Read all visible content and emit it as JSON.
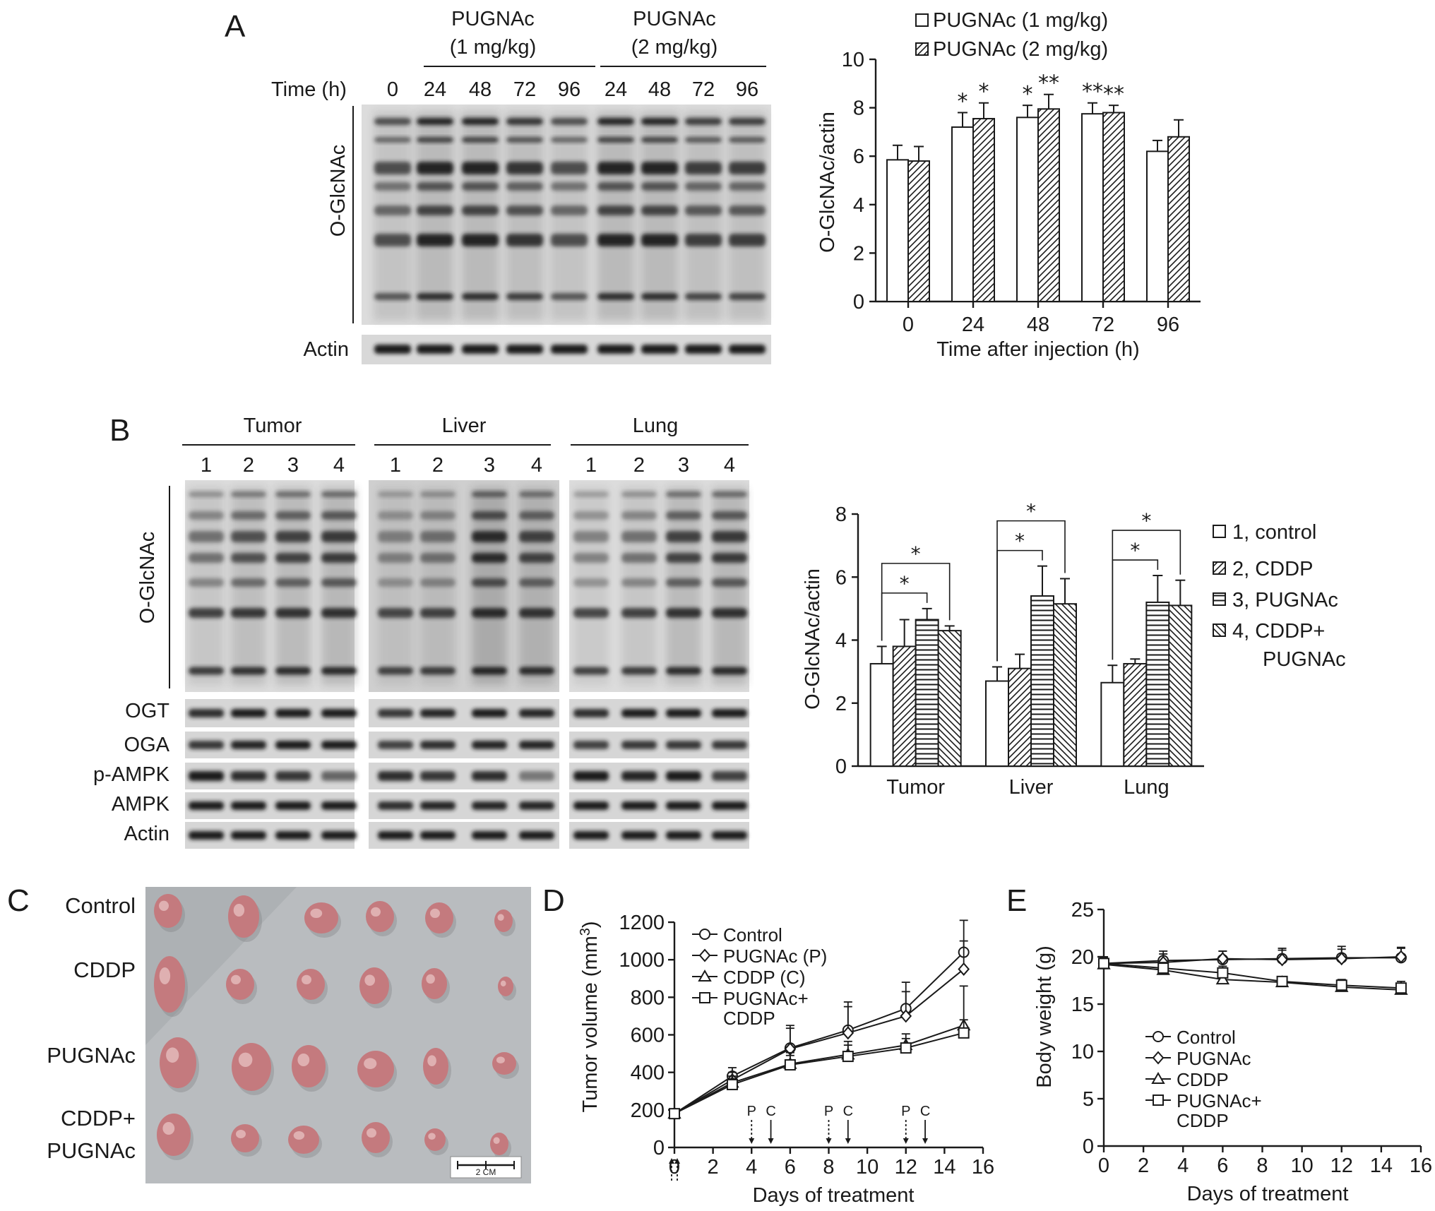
{
  "panel_letters": [
    "A",
    "B",
    "C",
    "D",
    "E"
  ],
  "panel_a": {
    "blot": {
      "group_1mg": [
        "PUGNAc",
        "(1 mg/kg)"
      ],
      "group_2mg": [
        "PUGNAc",
        "(2 mg/kg)"
      ],
      "time_label": "Time (h)",
      "lane_times": [
        "0",
        "24",
        "48",
        "72",
        "96",
        "24",
        "48",
        "72",
        "96"
      ],
      "row_labels": [
        "O-GlcNAc",
        "Actin"
      ]
    }
  },
  "panel_b": {
    "blot": {
      "tissues": [
        "Tumor",
        "Liver",
        "Lung"
      ],
      "lane_numbers": [
        "1",
        "2",
        "3",
        "4"
      ],
      "row_labels": [
        "O-GlcNAc",
        "OGT",
        "OGA",
        "p-AMPK",
        "AMPK",
        "Actin"
      ]
    }
  },
  "panel_c": {
    "row_labels": [
      "Control",
      "CDDP",
      "PUGNAc",
      "CDDP+",
      "PUGNAc"
    ],
    "scale_bar": "2 CM",
    "tumor_color": "#c47a7e",
    "background_color": "#b9bcbf"
  },
  "colors": {
    "ink": "#1a1a1a",
    "band": "#1e1e1e",
    "membrane": "#dcdcdc"
  },
  "chart_data": [
    {
      "id": "A-bar",
      "type": "bar",
      "categories": [
        "0",
        "24",
        "48",
        "72",
        "96"
      ],
      "series": [
        {
          "name": "PUGNAc (1 mg/kg)",
          "pattern": "open",
          "values": [
            5.85,
            7.2,
            7.6,
            7.75,
            6.2
          ],
          "errors": [
            0.6,
            0.6,
            0.5,
            0.45,
            0.45
          ],
          "stars": [
            "",
            "*",
            "*",
            "**",
            ""
          ]
        },
        {
          "name": "PUGNAc (2 mg/kg)",
          "pattern": "diagonal",
          "values": [
            5.8,
            7.55,
            7.95,
            7.8,
            6.8
          ],
          "errors": [
            0.6,
            0.65,
            0.6,
            0.3,
            0.7
          ],
          "stars": [
            "",
            "*",
            "**",
            "**",
            ""
          ]
        }
      ],
      "xlabel": "Time after injection (h)",
      "ylabel": "O-GlcNAc/actin",
      "ylim": [
        0,
        10
      ],
      "yticks": [
        "0",
        "2",
        "4",
        "6",
        "8",
        "10"
      ],
      "legend": "top"
    },
    {
      "id": "B-bar",
      "type": "bar",
      "categories": [
        "Tumor",
        "Liver",
        "Lung"
      ],
      "series": [
        {
          "name": "1, control",
          "pattern": "open",
          "values": [
            3.25,
            2.7,
            2.65
          ],
          "errors": [
            0.55,
            0.45,
            0.55
          ]
        },
        {
          "name": "2, CDDP",
          "pattern": "diagonal",
          "values": [
            3.8,
            3.1,
            3.25
          ],
          "errors": [
            0.85,
            0.45,
            0.15
          ]
        },
        {
          "name": "3, PUGNAc",
          "pattern": "horizontal",
          "values": [
            4.65,
            5.4,
            5.2
          ],
          "errors": [
            0.35,
            0.95,
            0.85
          ]
        },
        {
          "name": "4, CDDP+ PUGNAc",
          "legend_lines": [
            "4, CDDP+",
            "PUGNAc"
          ],
          "pattern": "antidiagonal",
          "values": [
            4.3,
            5.15,
            5.1
          ],
          "errors": [
            0.15,
            0.8,
            0.8
          ]
        }
      ],
      "significance": [
        {
          "category": 0,
          "from": 0,
          "to": 2,
          "label": "*"
        },
        {
          "category": 0,
          "from": 0,
          "to": 3,
          "label": "*"
        },
        {
          "category": 1,
          "from": 0,
          "to": 2,
          "label": "*"
        },
        {
          "category": 1,
          "from": 0,
          "to": 3,
          "label": "*"
        },
        {
          "category": 2,
          "from": 0,
          "to": 2,
          "label": "*"
        },
        {
          "category": 2,
          "from": 0,
          "to": 3,
          "label": "*"
        }
      ],
      "ylabel": "O-GlcNAc/actin",
      "ylim": [
        0,
        8
      ],
      "yticks": [
        "0",
        "2",
        "4",
        "6",
        "8"
      ],
      "legend": "right"
    },
    {
      "id": "D-line",
      "type": "line",
      "x": [
        0,
        3,
        6,
        9,
        12,
        15
      ],
      "series": [
        {
          "name": "Control",
          "marker": "circle",
          "values": [
            180,
            380,
            530,
            625,
            740,
            1040
          ],
          "errors": [
            20,
            45,
            120,
            150,
            140,
            170
          ]
        },
        {
          "name": "PUGNAc (P)",
          "marker": "diamond",
          "values": [
            180,
            360,
            525,
            610,
            700,
            950
          ],
          "errors": [
            20,
            40,
            110,
            140,
            130,
            150
          ]
        },
        {
          "name": "CDDP (C)",
          "marker": "triangle",
          "values": [
            180,
            345,
            445,
            495,
            545,
            650
          ],
          "errors": [
            20,
            35,
            60,
            70,
            60,
            210
          ]
        },
        {
          "name": "PUGNAc+ CDDP",
          "legend_lines": [
            "PUGNAc+",
            "CDDP"
          ],
          "marker": "square",
          "values": [
            180,
            335,
            440,
            485,
            530,
            610
          ],
          "errors": [
            20,
            30,
            50,
            60,
            50,
            70
          ]
        }
      ],
      "annotations": [
        {
          "x": 4,
          "label": "P",
          "style": "dashed"
        },
        {
          "x": 5,
          "label": "C",
          "style": "solid"
        },
        {
          "x": 8,
          "label": "P",
          "style": "dashed"
        },
        {
          "x": 9,
          "label": "C",
          "style": "solid"
        },
        {
          "x": 12,
          "label": "P",
          "style": "dashed"
        },
        {
          "x": 13,
          "label": "C",
          "style": "solid"
        }
      ],
      "xlabel": "Days of treatment",
      "ylabel_parts": [
        "Tumor volume (mm",
        "3",
        ")"
      ],
      "xlim": [
        0,
        16
      ],
      "ylim": [
        0,
        1200
      ],
      "xticks": [
        "0",
        "2",
        "4",
        "6",
        "8",
        "10",
        "12",
        "14",
        "16"
      ],
      "yticks": [
        "0",
        "200",
        "400",
        "600",
        "800",
        "1000",
        "1200"
      ],
      "legend": "top-left"
    },
    {
      "id": "E-line",
      "type": "line",
      "x": [
        0,
        3,
        6,
        9,
        12,
        15
      ],
      "series": [
        {
          "name": "Control",
          "marker": "circle",
          "values": [
            19.3,
            19.6,
            19.7,
            19.8,
            19.9,
            19.9
          ],
          "errors": [
            0.7,
            1.0,
            0.9,
            1.1,
            1.2,
            1.1
          ]
        },
        {
          "name": "PUGNAc",
          "marker": "diamond",
          "values": [
            19.3,
            19.4,
            19.8,
            19.7,
            19.8,
            20.0
          ],
          "errors": [
            0.7,
            0.9,
            0.8,
            1.0,
            1.0,
            0.9
          ]
        },
        {
          "name": "CDDP",
          "marker": "triangle",
          "values": [
            19.2,
            18.6,
            17.6,
            17.3,
            16.8,
            16.5
          ],
          "errors": [
            0.6,
            0.5,
            0.6,
            0.5,
            0.6,
            0.7
          ]
        },
        {
          "name": "PUGNAc+ CDDP",
          "legend_lines": [
            "PUGNAc+",
            "CDDP"
          ],
          "marker": "square",
          "values": [
            19.3,
            18.8,
            18.3,
            17.4,
            17.0,
            16.7
          ],
          "errors": [
            0.6,
            0.6,
            0.7,
            0.5,
            0.6,
            0.7
          ]
        }
      ],
      "xlabel": "Days of treatment",
      "ylabel": "Body weight (g)",
      "xlim": [
        0,
        16
      ],
      "ylim": [
        0,
        25
      ],
      "xticks": [
        "0",
        "2",
        "4",
        "6",
        "8",
        "10",
        "12",
        "14",
        "16"
      ],
      "yticks": [
        "0",
        "5",
        "10",
        "15",
        "20",
        "25"
      ],
      "legend": "bottom-left"
    }
  ]
}
